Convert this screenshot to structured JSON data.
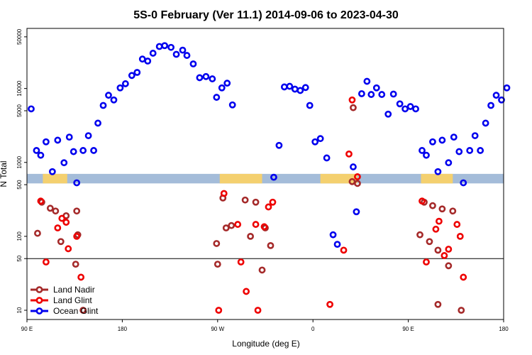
{
  "chart_data": {
    "type": "scatter",
    "title": "5S-0 February (Ver 11.1)   2014-09-06 to 2023-04-30",
    "xlabel": "Longitude (deg E)",
    "ylabel": "N Total",
    "x_axis": {
      "range_label": "90 E to 180 via 180/90 W/0/90 E (wraps 450 deg)",
      "xlim": [
        90,
        540
      ],
      "ticks": [
        90,
        180,
        270,
        360,
        450,
        540
      ],
      "tick_labels": [
        "90 E",
        "180",
        "90 W",
        "0",
        "90 E",
        "180"
      ]
    },
    "y_axis": {
      "scale": "log",
      "ylim": [
        7.5,
        65000
      ],
      "ticks": [
        10,
        50,
        100,
        500,
        1000,
        5000,
        10000,
        50000
      ],
      "tick_labels": [
        "10",
        "50",
        "100",
        "500",
        "1000",
        "5000",
        "10000",
        "50000"
      ]
    },
    "reference_line_y": 50,
    "land_mask_band": {
      "y_from": 520,
      "y_to": 700
    },
    "legend": {
      "position": "bottom-left"
    },
    "series": [
      {
        "name": "Land Nadir",
        "color": "#a52a2a",
        "points": [
          [
            100,
            110
          ],
          [
            104,
            290
          ],
          [
            112,
            240
          ],
          [
            117,
            220
          ],
          [
            122,
            85
          ],
          [
            127,
            190
          ],
          [
            136,
            42
          ],
          [
            137,
            220
          ],
          [
            138,
            105
          ],
          [
            143,
            10
          ],
          [
            269,
            80
          ],
          [
            270,
            42
          ],
          [
            275,
            330
          ],
          [
            278,
            130
          ],
          [
            283,
            140
          ],
          [
            296,
            310
          ],
          [
            301,
            100
          ],
          [
            306,
            290
          ],
          [
            312,
            35
          ],
          [
            315,
            130
          ],
          [
            320,
            75
          ],
          [
            397,
            550
          ],
          [
            398,
            5500
          ],
          [
            402,
            520
          ],
          [
            461,
            105
          ],
          [
            465,
            290
          ],
          [
            470,
            85
          ],
          [
            473,
            260
          ],
          [
            478,
            12
          ],
          [
            478,
            65
          ],
          [
            482,
            235
          ],
          [
            488,
            40
          ],
          [
            492,
            220
          ],
          [
            500,
            10
          ]
        ]
      },
      {
        "name": "Land Glint",
        "color": "#ee0000",
        "points": [
          [
            103,
            300
          ],
          [
            108,
            45
          ],
          [
            119,
            130
          ],
          [
            123,
            175
          ],
          [
            127,
            155
          ],
          [
            129,
            68
          ],
          [
            137,
            100
          ],
          [
            141,
            28
          ],
          [
            271,
            10
          ],
          [
            276,
            380
          ],
          [
            289,
            145
          ],
          [
            292,
            45
          ],
          [
            297,
            18
          ],
          [
            306,
            145
          ],
          [
            308,
            10
          ],
          [
            314,
            135
          ],
          [
            318,
            250
          ],
          [
            322,
            290
          ],
          [
            376,
            12
          ],
          [
            389,
            65
          ],
          [
            394,
            1300
          ],
          [
            397,
            7000
          ],
          [
            402,
            640
          ],
          [
            463,
            300
          ],
          [
            467,
            45
          ],
          [
            476,
            125
          ],
          [
            479,
            160
          ],
          [
            484,
            55
          ],
          [
            488,
            67
          ],
          [
            496,
            145
          ],
          [
            499,
            100
          ],
          [
            502,
            28
          ]
        ]
      },
      {
        "name": "Ocean Glint",
        "color": "#0000ee",
        "points": [
          [
            94,
            5300
          ],
          [
            99,
            1450
          ],
          [
            103,
            1250
          ],
          [
            108,
            1900
          ],
          [
            114,
            750
          ],
          [
            119,
            2000
          ],
          [
            125,
            990
          ],
          [
            130,
            2200
          ],
          [
            134,
            1400
          ],
          [
            137,
            530
          ],
          [
            143,
            1450
          ],
          [
            148,
            2300
          ],
          [
            153,
            1450
          ],
          [
            157,
            3400
          ],
          [
            162,
            5900
          ],
          [
            167,
            8100
          ],
          [
            172,
            7000
          ],
          [
            178,
            10200
          ],
          [
            183,
            11600
          ],
          [
            189,
            15000
          ],
          [
            194,
            16500
          ],
          [
            199,
            25000
          ],
          [
            204,
            23500
          ],
          [
            209,
            30000
          ],
          [
            215,
            37000
          ],
          [
            220,
            38000
          ],
          [
            226,
            36000
          ],
          [
            231,
            29000
          ],
          [
            237,
            33000
          ],
          [
            241,
            28000
          ],
          [
            247,
            21500
          ],
          [
            253,
            14000
          ],
          [
            259,
            14500
          ],
          [
            265,
            13500
          ],
          [
            269,
            7600
          ],
          [
            274,
            10200
          ],
          [
            279,
            11800
          ],
          [
            284,
            6000
          ],
          [
            323,
            630
          ],
          [
            328,
            1700
          ],
          [
            333,
            10500
          ],
          [
            338,
            10700
          ],
          [
            343,
            9800
          ],
          [
            348,
            9400
          ],
          [
            353,
            10300
          ],
          [
            357,
            5900
          ],
          [
            362,
            1900
          ],
          [
            367,
            2100
          ],
          [
            373,
            1150
          ],
          [
            379,
            105
          ],
          [
            383,
            78
          ],
          [
            398,
            870
          ],
          [
            401,
            215
          ],
          [
            406,
            8500
          ],
          [
            411,
            12500
          ],
          [
            415,
            8300
          ],
          [
            420,
            10200
          ],
          [
            425,
            8300
          ],
          [
            431,
            4500
          ],
          [
            436,
            8400
          ],
          [
            442,
            6200
          ],
          [
            447,
            5300
          ],
          [
            452,
            5700
          ],
          [
            457,
            5300
          ],
          [
            463,
            1450
          ],
          [
            467,
            1250
          ],
          [
            473,
            1900
          ],
          [
            478,
            750
          ],
          [
            482,
            2000
          ],
          [
            488,
            990
          ],
          [
            493,
            2200
          ],
          [
            498,
            1400
          ],
          [
            502,
            530
          ],
          [
            508,
            1450
          ],
          [
            513,
            2300
          ],
          [
            518,
            1450
          ],
          [
            523,
            3400
          ],
          [
            528,
            5900
          ],
          [
            533,
            8100
          ],
          [
            538,
            7000
          ],
          [
            543,
            10200
          ]
        ]
      }
    ]
  }
}
